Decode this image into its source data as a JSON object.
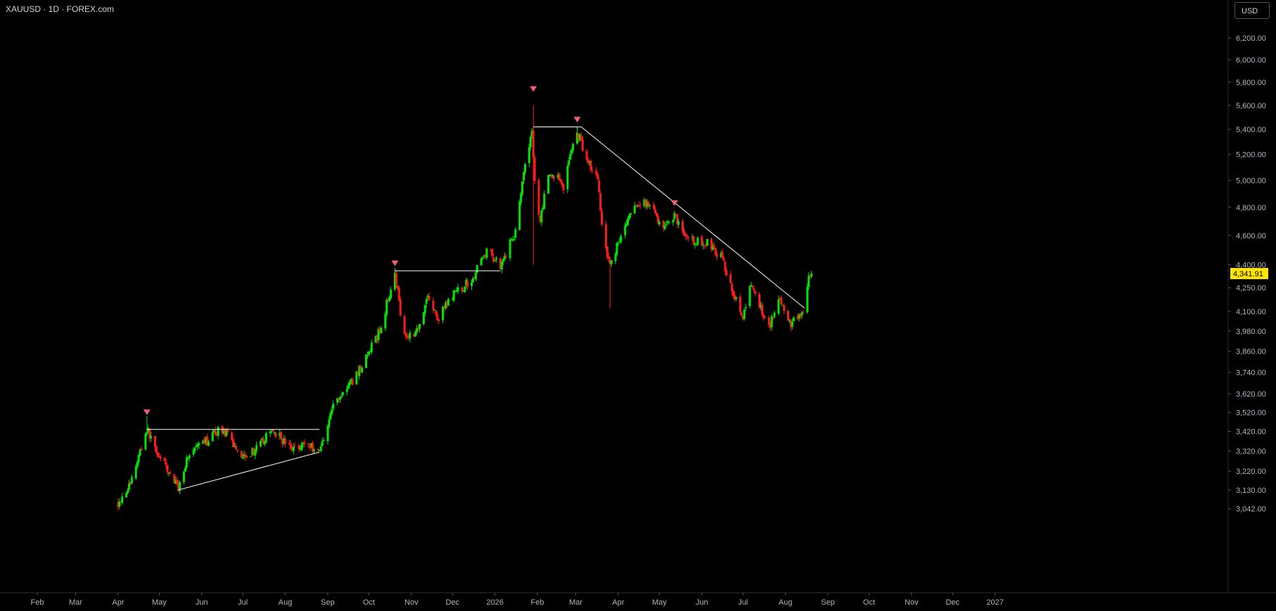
{
  "symbol_label": "XAUUSD · 1D · FOREX.com",
  "currency_button": "USD",
  "colors": {
    "up": "#00e600",
    "down": "#ff1a1a",
    "background": "#000000",
    "marker": "#f06070",
    "line": "#ffffff",
    "price_tag": "#ffe400"
  },
  "chart_data": {
    "type": "candlestick",
    "title": "",
    "xlabel": "",
    "ylabel": "",
    "y_scale": "log",
    "ylim": [
      3042,
      6400
    ],
    "y_ticks": [
      {
        "value": 3042,
        "label": "3,042.00"
      },
      {
        "value": 3130,
        "label": "3,130.00"
      },
      {
        "value": 3220,
        "label": "3,220.00"
      },
      {
        "value": 3320,
        "label": "3,320.00"
      },
      {
        "value": 3420,
        "label": "3,420.00"
      },
      {
        "value": 3520,
        "label": "3,520.00"
      },
      {
        "value": 3620,
        "label": "3,620.00"
      },
      {
        "value": 3740,
        "label": "3,740.00"
      },
      {
        "value": 3860,
        "label": "3,860.00"
      },
      {
        "value": 3980,
        "label": "3,980.00"
      },
      {
        "value": 4100,
        "label": "4,100.00"
      },
      {
        "value": 4250,
        "label": "4,250.00"
      },
      {
        "value": 4400,
        "label": "4,400.00"
      },
      {
        "value": 4600,
        "label": "4,600.00"
      },
      {
        "value": 4800,
        "label": "4,800.00"
      },
      {
        "value": 5000,
        "label": "5,000.00"
      },
      {
        "value": 5200,
        "label": "5,200.00"
      },
      {
        "value": 5400,
        "label": "5,400.00"
      },
      {
        "value": 5600,
        "label": "5,600.00"
      },
      {
        "value": 5800,
        "label": "5,800.00"
      },
      {
        "value": 6000,
        "label": "6,000.00"
      },
      {
        "value": 6200,
        "label": "6,200.00"
      }
    ],
    "x_ticks": [
      "Feb",
      "Mar",
      "Apr",
      "May",
      "Jun",
      "Jul",
      "Aug",
      "Sep",
      "Oct",
      "Nov",
      "Dec",
      "2026",
      "Feb",
      "Mar",
      "Apr",
      "May",
      "Jun",
      "Jul",
      "Aug",
      "Sep",
      "Oct",
      "Nov",
      "Dec",
      "2027"
    ],
    "last_price": 4341.91,
    "last_price_label": "4,341.91",
    "anchors": [
      [
        "2025-04-01",
        3070
      ],
      [
        "2025-04-10",
        3160
      ],
      [
        "2025-04-22",
        3430
      ],
      [
        "2025-05-01",
        3290
      ],
      [
        "2025-05-15",
        3140
      ],
      [
        "2025-05-22",
        3300
      ],
      [
        "2025-06-05",
        3370
      ],
      [
        "2025-06-15",
        3440
      ],
      [
        "2025-06-30",
        3300
      ],
      [
        "2025-07-10",
        3320
      ],
      [
        "2025-07-23",
        3430
      ],
      [
        "2025-08-05",
        3330
      ],
      [
        "2025-08-15",
        3360
      ],
      [
        "2025-08-26",
        3320
      ],
      [
        "2025-09-05",
        3560
      ],
      [
        "2025-09-20",
        3700
      ],
      [
        "2025-10-01",
        3850
      ],
      [
        "2025-10-10",
        4000
      ],
      [
        "2025-10-20",
        4360
      ],
      [
        "2025-10-24",
        4100
      ],
      [
        "2025-10-28",
        3950
      ],
      [
        "2025-11-05",
        3980
      ],
      [
        "2025-11-13",
        4200
      ],
      [
        "2025-11-20",
        4050
      ],
      [
        "2025-12-01",
        4200
      ],
      [
        "2025-12-15",
        4300
      ],
      [
        "2025-12-26",
        4500
      ],
      [
        "2026-01-05",
        4400
      ],
      [
        "2026-01-15",
        4600
      ],
      [
        "2026-01-28",
        5400
      ],
      [
        "2026-01-31",
        4800
      ],
      [
        "2026-02-03",
        4700
      ],
      [
        "2026-02-08",
        5000
      ],
      [
        "2026-02-15",
        5050
      ],
      [
        "2026-02-20",
        4950
      ],
      [
        "2026-02-25",
        5200
      ],
      [
        "2026-03-02",
        5380
      ],
      [
        "2026-03-10",
        5150
      ],
      [
        "2026-03-17",
        5000
      ],
      [
        "2026-03-21",
        4600
      ],
      [
        "2026-03-26",
        4400
      ],
      [
        "2026-04-03",
        4600
      ],
      [
        "2026-04-10",
        4750
      ],
      [
        "2026-04-20",
        4850
      ],
      [
        "2026-05-05",
        4650
      ],
      [
        "2026-05-12",
        4750
      ],
      [
        "2026-05-22",
        4560
      ],
      [
        "2026-06-05",
        4550
      ],
      [
        "2026-06-15",
        4450
      ],
      [
        "2026-06-25",
        4200
      ],
      [
        "2026-07-01",
        4050
      ],
      [
        "2026-07-07",
        4270
      ],
      [
        "2026-07-15",
        4100
      ],
      [
        "2026-07-20",
        4000
      ],
      [
        "2026-07-27",
        4200
      ],
      [
        "2026-08-03",
        4020
      ],
      [
        "2026-08-10",
        4060
      ],
      [
        "2026-08-15",
        4090
      ],
      [
        "2026-08-18",
        4300
      ],
      [
        "2026-08-20",
        4342
      ]
    ],
    "wick_spikes": [
      {
        "date": "2025-04-22",
        "high": 3500
      },
      {
        "date": "2025-10-20",
        "high": 4380
      },
      {
        "date": "2026-01-29",
        "high": 5600,
        "low": 4400
      },
      {
        "date": "2026-03-02",
        "high": 5420
      },
      {
        "date": "2026-03-26",
        "low": 4120
      }
    ],
    "annotations": {
      "top_markers": [
        {
          "date": "2025-04-22",
          "price": 3520
        },
        {
          "date": "2025-10-20",
          "price": 4410
        },
        {
          "date": "2026-01-29",
          "price": 5740
        },
        {
          "date": "2026-03-02",
          "price": 5480
        },
        {
          "date": "2026-05-12",
          "price": 4830
        }
      ],
      "lines": [
        {
          "from": [
            "2025-04-22",
            3430
          ],
          "to": [
            "2025-08-26",
            3430
          ]
        },
        {
          "from": [
            "2025-05-15",
            3130
          ],
          "to": [
            "2025-08-26",
            3315
          ]
        },
        {
          "from": [
            "2025-10-20",
            4360
          ],
          "to": [
            "2026-01-05",
            4360
          ]
        },
        {
          "from": [
            "2026-01-29",
            5420
          ],
          "to": [
            "2026-03-05",
            5420
          ]
        },
        {
          "from": [
            "2026-03-05",
            5420
          ],
          "to": [
            "2026-08-15",
            4120
          ]
        }
      ]
    }
  }
}
